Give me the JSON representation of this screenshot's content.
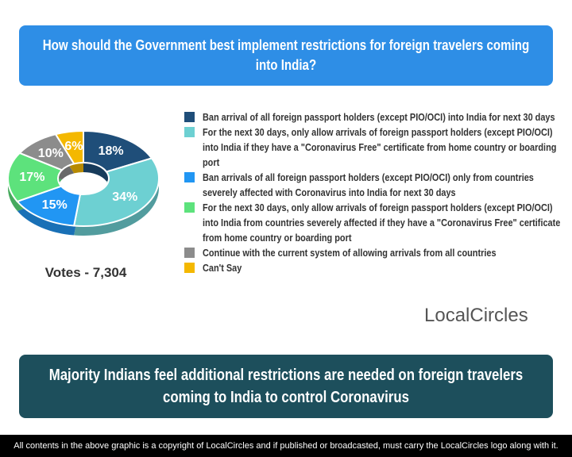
{
  "chart_data": {
    "type": "pie",
    "title": "How should the Government best implement restrictions for foreign travelers coming into India?",
    "categories": [
      "Ban arrival of all foreign passport holders (except PIO/OCI) into India for next 30 days",
      "For the next 30 days, only allow arrivals of foreign passport holders (except PIO/OCI) into India if they have a \"Coronavirus Free\" certificate from home country or boarding port",
      "Ban arrivals of all foreign passport holders (except PIO/OCI) only from countries severely affected with Coronavirus into India for next 30 days",
      "For the next 30 days, only allow arrivals of foreign passport holders (except PIO/OCI) into India from countries severely affected if they have a \"Coronavirus Free\" certificate from home country or boarding port",
      "Continue with the current system of allowing arrivals from all countries",
      "Can't Say"
    ],
    "values": [
      18,
      34,
      15,
      17,
      10,
      6
    ],
    "value_labels": [
      "18%",
      "34%",
      "15%",
      "17%",
      "10%",
      "6%"
    ],
    "colors": [
      "#1f4e79",
      "#6dd0d2",
      "#2196f3",
      "#5de27c",
      "#8c8c8c",
      "#f4b800"
    ],
    "votes": "Votes - 7,304",
    "logo": "LocalCircles",
    "conclusion": "Majority Indians feel additional restrictions are needed on foreign travelers coming to India to control Coronavirus",
    "footer": "All contents in the above graphic is a copyright of LocalCircles and if published or broadcasted, must carry the LocalCircles logo along with it."
  }
}
